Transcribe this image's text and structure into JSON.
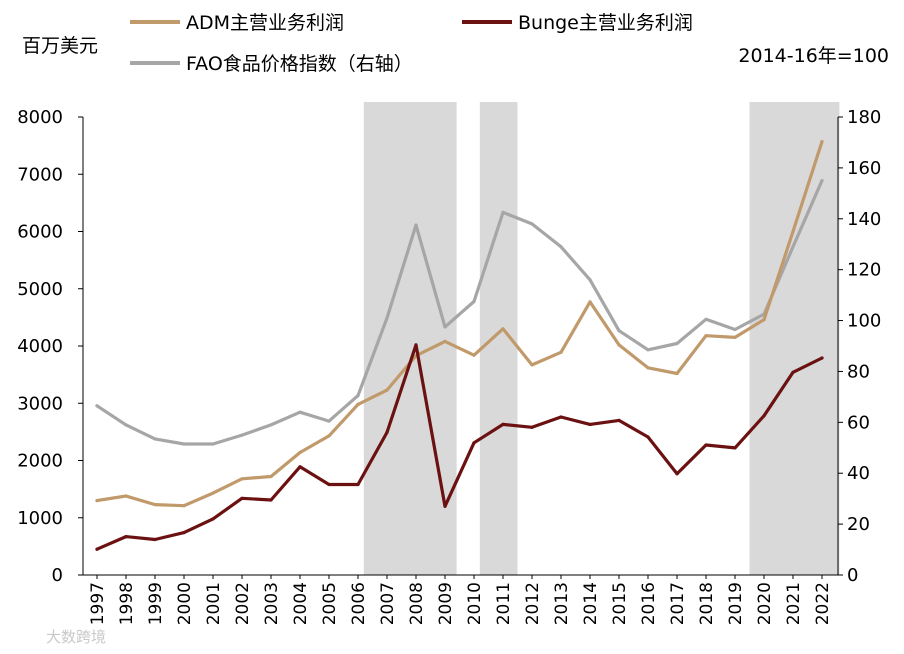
{
  "chart_data": {
    "type": "line",
    "title": "",
    "left_axis_unit": "百万美元",
    "right_axis_unit": "2014-16年=100",
    "xlabel": "",
    "ylabel": "百万美元",
    "ylim": [
      0,
      8000
    ],
    "y2lim": [
      0,
      180
    ],
    "y_ticks": [
      0,
      1000,
      2000,
      3000,
      4000,
      5000,
      6000,
      7000,
      8000
    ],
    "y2_ticks": [
      0,
      20,
      40,
      60,
      80,
      100,
      120,
      140,
      160,
      180
    ],
    "categories": [
      "1997",
      "1998",
      "1999",
      "2000",
      "2001",
      "2002",
      "2003",
      "2004",
      "2005",
      "2006",
      "2007",
      "2008",
      "2009",
      "2010",
      "2011",
      "2012",
      "2013",
      "2014",
      "2015",
      "2016",
      "2017",
      "2018",
      "2019",
      "2020",
      "2021",
      "2022"
    ],
    "shaded_periods": [
      {
        "start": 2006.2,
        "end": 2009.4
      },
      {
        "start": 2010.2,
        "end": 2011.5
      },
      {
        "start": 2019.5,
        "end": 2022.6
      }
    ],
    "series": [
      {
        "name": "ADM主营业务利润",
        "axis": "left",
        "color": "#c19a6b",
        "values": [
          1300,
          1380,
          1230,
          1210,
          1430,
          1680,
          1720,
          2140,
          2430,
          2980,
          3230,
          3830,
          4080,
          3840,
          4300,
          3670,
          3890,
          4770,
          4020,
          3620,
          3520,
          4180,
          4150,
          4460,
          6000,
          7570
        ]
      },
      {
        "name": "Bunge主营业务利润",
        "axis": "left",
        "color": "#6b1111",
        "values": [
          450,
          670,
          620,
          740,
          980,
          1340,
          1310,
          1890,
          1580,
          1580,
          2490,
          4020,
          1200,
          2310,
          2630,
          2580,
          2760,
          2630,
          2700,
          2410,
          1770,
          2270,
          2220,
          2780,
          3540,
          3790
        ]
      },
      {
        "name": "FAO食品价格指数（右轴）",
        "axis": "right",
        "color": "#a6a6a6",
        "values": [
          66.5,
          59,
          53.5,
          51.5,
          51.5,
          55,
          59,
          64,
          60.5,
          70.5,
          101,
          137.5,
          97.5,
          107.5,
          142.5,
          138,
          129,
          116,
          96,
          88.5,
          91,
          100.5,
          96.5,
          102.5,
          129,
          155
        ]
      }
    ]
  },
  "watermark": {
    "text": "大数跨境"
  }
}
